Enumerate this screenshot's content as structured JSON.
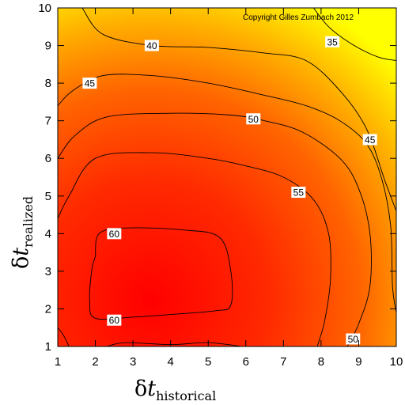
{
  "chart_data": {
    "type": "contour",
    "copyright": "Copyright Gilles Zumbach 2012",
    "xlabel": {
      "symbol": "δ",
      "var": "t",
      "subscript": "historical"
    },
    "ylabel": {
      "symbol": "δ",
      "var": "t",
      "subscript": "realized"
    },
    "xlim": [
      1,
      10
    ],
    "ylim": [
      1,
      10
    ],
    "x_ticks": [
      "1",
      "2",
      "3",
      "4",
      "5",
      "6",
      "7",
      "8",
      "9",
      "10"
    ],
    "y_ticks": [
      "1",
      "2",
      "3",
      "4",
      "5",
      "6",
      "7",
      "8",
      "9",
      "10"
    ],
    "colorscale": [
      "#ffff00",
      "#ff0000"
    ],
    "contour_levels": [
      {
        "level": 35,
        "labels": [
          {
            "text": "35",
            "x": 8.3,
            "y": 9.1
          }
        ]
      },
      {
        "level": 40,
        "labels": [
          {
            "text": "40",
            "x": 3.5,
            "y": 9.0
          }
        ]
      },
      {
        "level": 45,
        "labels": [
          {
            "text": "45",
            "x": 1.85,
            "y": 8.0
          },
          {
            "text": "45",
            "x": 9.3,
            "y": 6.5
          }
        ]
      },
      {
        "level": 50,
        "labels": [
          {
            "text": "50",
            "x": 6.2,
            "y": 7.05
          },
          {
            "text": "50",
            "x": 8.85,
            "y": 1.2
          }
        ]
      },
      {
        "level": 55,
        "labels": [
          {
            "text": "55",
            "x": 7.4,
            "y": 5.1
          }
        ]
      },
      {
        "level": 60,
        "labels": [
          {
            "text": "60",
            "x": 2.5,
            "y": 4.0
          },
          {
            "text": "60",
            "x": 2.5,
            "y": 1.7
          }
        ]
      }
    ]
  }
}
